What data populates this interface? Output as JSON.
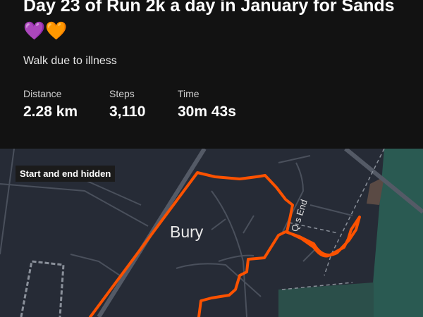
{
  "activity": {
    "title": "Day 23 of Run 2k a day in January for Sands 💜🧡",
    "description": "Walk due to illness",
    "stats": [
      {
        "label": "Distance",
        "value": "2.28 km"
      },
      {
        "label": "Steps",
        "value": "3,110"
      },
      {
        "label": "Time",
        "value": "30m 43s"
      }
    ]
  },
  "map": {
    "privacy_badge": "Start and end hidden",
    "place_label": "Bury",
    "street_label": "Q  s End",
    "route_color": "#fc5200"
  }
}
